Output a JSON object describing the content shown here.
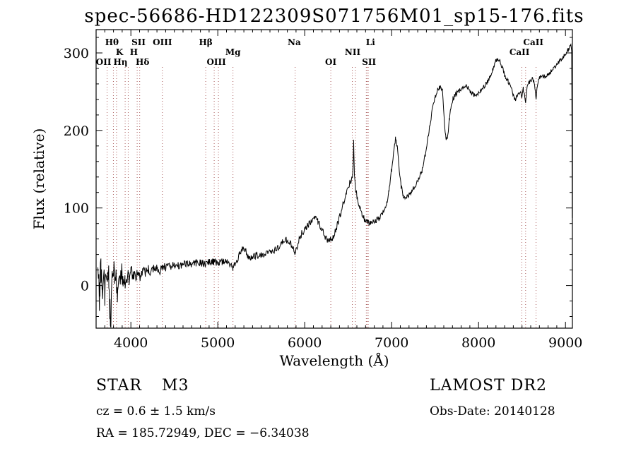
{
  "chart_data": {
    "type": "line",
    "title": "spec-56686-HD122309S071756M01_sp15-176.fits",
    "xlabel": "Wavelength (Å)",
    "ylabel": "Flux (relative)",
    "xlim": [
      3600,
      9080
    ],
    "ylim": [
      -55,
      330
    ],
    "xticks": [
      4000,
      5000,
      6000,
      7000,
      8000,
      9000
    ],
    "yticks": [
      0,
      100,
      200,
      300
    ],
    "grid": false,
    "trace_color": "#000000",
    "spectral_lines": {
      "marker_color": "#a04848",
      "wavelengths": [
        3727,
        3798,
        3835,
        3934,
        3969,
        4072,
        4102,
        4363,
        4861,
        4959,
        5007,
        5175,
        5890,
        6300,
        6548,
        6584,
        6708,
        6717,
        6731,
        8498,
        8542,
        8662
      ],
      "labels": [
        {
          "label": "Hθ",
          "wl": 3798,
          "row": 0,
          "dx": -2
        },
        {
          "label": "SII",
          "wl": 4072,
          "row": 0,
          "dx": 2
        },
        {
          "label": "OIII",
          "wl": 4363,
          "row": 0,
          "dx": 0
        },
        {
          "label": "Hβ",
          "wl": 4861,
          "row": 0,
          "dx": 0
        },
        {
          "label": "Na",
          "wl": 5880,
          "row": 0,
          "dx": 0
        },
        {
          "label": "Li",
          "wl": 6708,
          "row": 0,
          "dx": 6
        },
        {
          "label": "CaII",
          "wl": 8630,
          "row": 0,
          "dx": 0
        },
        {
          "label": "K",
          "wl": 3934,
          "row": 1,
          "dx": -8
        },
        {
          "label": "H",
          "wl": 3969,
          "row": 1,
          "dx": 8
        },
        {
          "label": "Mg",
          "wl": 5175,
          "row": 1,
          "dx": 0
        },
        {
          "label": "NII",
          "wl": 6584,
          "row": 1,
          "dx": -4
        },
        {
          "label": "CaII",
          "wl": 8520,
          "row": 1,
          "dx": -6
        },
        {
          "label": "OII",
          "wl": 3727,
          "row": 2,
          "dx": -5
        },
        {
          "label": "Hη",
          "wl": 3840,
          "row": 2,
          "dx": 5
        },
        {
          "label": "Hδ",
          "wl": 4102,
          "row": 2,
          "dx": 4
        },
        {
          "label": "OIII",
          "wl": 4983,
          "row": 2,
          "dx": 0
        },
        {
          "label": "OI",
          "wl": 6300,
          "row": 2,
          "dx": 0
        },
        {
          "label": "SII",
          "wl": 6724,
          "row": 2,
          "dx": 2
        }
      ]
    },
    "spectrum": {
      "sample_step": 6,
      "noise_seed": 12345,
      "noise_profile": [
        [
          3620,
          28
        ],
        [
          3900,
          14
        ],
        [
          4100,
          8
        ],
        [
          4500,
          5
        ],
        [
          5500,
          4.5
        ],
        [
          6500,
          4
        ],
        [
          7500,
          3
        ],
        [
          9078,
          3
        ]
      ],
      "control_points": [
        [
          3620,
          5
        ],
        [
          3640,
          -10
        ],
        [
          3655,
          25
        ],
        [
          3670,
          -5
        ],
        [
          3685,
          15
        ],
        [
          3700,
          -15
        ],
        [
          3715,
          20
        ],
        [
          3730,
          -5
        ],
        [
          3745,
          22
        ],
        [
          3760,
          -30
        ],
        [
          3770,
          -45
        ],
        [
          3785,
          15
        ],
        [
          3800,
          25
        ],
        [
          3815,
          -5
        ],
        [
          3830,
          10
        ],
        [
          3845,
          -20
        ],
        [
          3860,
          15
        ],
        [
          3875,
          5
        ],
        [
          3890,
          20
        ],
        [
          3910,
          10
        ],
        [
          3934,
          8
        ],
        [
          3950,
          16
        ],
        [
          3969,
          10
        ],
        [
          4000,
          15
        ],
        [
          4030,
          18
        ],
        [
          4072,
          14
        ],
        [
          4102,
          13
        ],
        [
          4130,
          19
        ],
        [
          4160,
          17
        ],
        [
          4200,
          19
        ],
        [
          4250,
          21
        ],
        [
          4300,
          22
        ],
        [
          4340,
          19
        ],
        [
          4363,
          21
        ],
        [
          4400,
          24
        ],
        [
          4450,
          25
        ],
        [
          4500,
          26
        ],
        [
          4550,
          26
        ],
        [
          4600,
          27
        ],
        [
          4650,
          28
        ],
        [
          4700,
          28
        ],
        [
          4750,
          29
        ],
        [
          4800,
          30
        ],
        [
          4861,
          27
        ],
        [
          4900,
          30
        ],
        [
          4950,
          30
        ],
        [
          5000,
          30
        ],
        [
          5050,
          31
        ],
        [
          5100,
          32
        ],
        [
          5140,
          28
        ],
        [
          5175,
          23
        ],
        [
          5210,
          30
        ],
        [
          5250,
          40
        ],
        [
          5290,
          48
        ],
        [
          5320,
          44
        ],
        [
          5350,
          37
        ],
        [
          5400,
          36
        ],
        [
          5450,
          40
        ],
        [
          5500,
          38
        ],
        [
          5550,
          41
        ],
        [
          5600,
          44
        ],
        [
          5650,
          46
        ],
        [
          5700,
          50
        ],
        [
          5740,
          55
        ],
        [
          5780,
          59
        ],
        [
          5820,
          57
        ],
        [
          5860,
          50
        ],
        [
          5890,
          40
        ],
        [
          5910,
          50
        ],
        [
          5940,
          62
        ],
        [
          5970,
          68
        ],
        [
          6000,
          72
        ],
        [
          6040,
          78
        ],
        [
          6080,
          84
        ],
        [
          6120,
          88
        ],
        [
          6150,
          83
        ],
        [
          6190,
          74
        ],
        [
          6230,
          64
        ],
        [
          6260,
          58
        ],
        [
          6290,
          60
        ],
        [
          6310,
          57
        ],
        [
          6340,
          66
        ],
        [
          6370,
          76
        ],
        [
          6400,
          88
        ],
        [
          6440,
          104
        ],
        [
          6480,
          118
        ],
        [
          6520,
          132
        ],
        [
          6545,
          139
        ],
        [
          6556,
          152
        ],
        [
          6563,
          186
        ],
        [
          6571,
          146
        ],
        [
          6585,
          126
        ],
        [
          6605,
          112
        ],
        [
          6630,
          101
        ],
        [
          6660,
          91
        ],
        [
          6690,
          85
        ],
        [
          6720,
          82
        ],
        [
          6760,
          80
        ],
        [
          6800,
          82
        ],
        [
          6850,
          86
        ],
        [
          6900,
          93
        ],
        [
          6940,
          104
        ],
        [
          6970,
          122
        ],
        [
          7000,
          150
        ],
        [
          7025,
          175
        ],
        [
          7045,
          190
        ],
        [
          7065,
          178
        ],
        [
          7085,
          152
        ],
        [
          7110,
          128
        ],
        [
          7135,
          115
        ],
        [
          7160,
          112
        ],
        [
          7190,
          116
        ],
        [
          7230,
          122
        ],
        [
          7270,
          129
        ],
        [
          7310,
          136
        ],
        [
          7350,
          149
        ],
        [
          7390,
          170
        ],
        [
          7430,
          200
        ],
        [
          7470,
          228
        ],
        [
          7500,
          242
        ],
        [
          7530,
          252
        ],
        [
          7560,
          256
        ],
        [
          7585,
          251
        ],
        [
          7605,
          215
        ],
        [
          7625,
          188
        ],
        [
          7645,
          192
        ],
        [
          7665,
          215
        ],
        [
          7685,
          232
        ],
        [
          7705,
          241
        ],
        [
          7740,
          247
        ],
        [
          7780,
          251
        ],
        [
          7820,
          254
        ],
        [
          7860,
          258
        ],
        [
          7900,
          251
        ],
        [
          7940,
          246
        ],
        [
          7980,
          247
        ],
        [
          8020,
          251
        ],
        [
          8060,
          256
        ],
        [
          8100,
          262
        ],
        [
          8140,
          271
        ],
        [
          8180,
          284
        ],
        [
          8210,
          293
        ],
        [
          8240,
          291
        ],
        [
          8270,
          282
        ],
        [
          8300,
          272
        ],
        [
          8340,
          263
        ],
        [
          8380,
          252
        ],
        [
          8420,
          240
        ],
        [
          8450,
          245
        ],
        [
          8480,
          251
        ],
        [
          8498,
          241
        ],
        [
          8515,
          254
        ],
        [
          8542,
          238
        ],
        [
          8558,
          256
        ],
        [
          8590,
          263
        ],
        [
          8620,
          268
        ],
        [
          8645,
          259
        ],
        [
          8662,
          243
        ],
        [
          8680,
          261
        ],
        [
          8705,
          268
        ],
        [
          8740,
          271
        ],
        [
          8780,
          269
        ],
        [
          8820,
          274
        ],
        [
          8860,
          279
        ],
        [
          8900,
          284
        ],
        [
          8940,
          290
        ],
        [
          8980,
          295
        ],
        [
          9010,
          300
        ],
        [
          9040,
          306
        ],
        [
          9060,
          313
        ],
        [
          9072,
          302
        ],
        [
          9076,
          180
        ],
        [
          9078,
          90
        ]
      ]
    }
  },
  "annotations": {
    "object_class": "STAR",
    "subclass": "M3",
    "cz": "cz = 0.6 ± 1.5 km/s",
    "radec": "RA = 185.72949, DEC = −6.34038",
    "survey": "LAMOST DR2",
    "obs_date": "Obs-Date: 20140128"
  }
}
